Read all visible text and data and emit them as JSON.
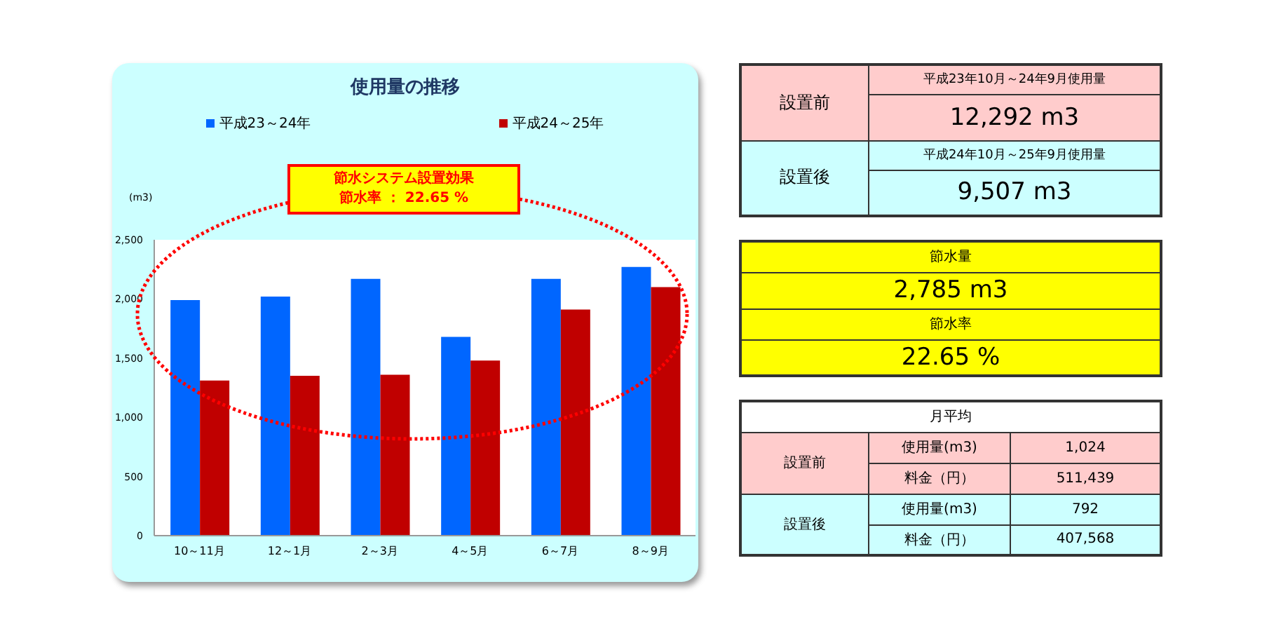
{
  "chart_data": [
    {
      "type": "bar",
      "title": "使用量の推移",
      "ylabel": "(m3)",
      "legend": "top",
      "categories": [
        "10～11月",
        "12～1月",
        "2～3月",
        "4～5月",
        "6～7月",
        "8～9月"
      ],
      "series": [
        {
          "name": "平成23～24年",
          "color": "#0066ff",
          "values": [
            1990,
            2020,
            2170,
            1680,
            2170,
            2270
          ]
        },
        {
          "name": "平成24～25年",
          "color": "#c00000",
          "values": [
            1310,
            1350,
            1360,
            1480,
            1910,
            2100
          ]
        }
      ],
      "ylim": [
        0,
        2500
      ],
      "yticks": [
        0,
        500,
        {
          "value": 1000,
          "label": "1,000"
        },
        {
          "value": 1500,
          "label": "1,500"
        },
        {
          "value": 2000,
          "label": "2,000"
        },
        {
          "value": 2500,
          "label": "2,500"
        }
      ],
      "annotations": [
        "節水システム設置効果",
        "節水率 ： 22.65 %"
      ]
    },
    {
      "type": "other",
      "annotations": [
        "設置前",
        "平成23年10月～24年9月使用量",
        "12,292 m3",
        "設置後",
        "平成24年10月～25年9月使用量",
        "9,507 m3"
      ]
    },
    {
      "type": "other",
      "annotations": [
        "節水量",
        "2,785 m3",
        "節水率",
        "22.65 %"
      ]
    },
    {
      "type": "other",
      "title": "月平均",
      "annotations": [
        "設置前",
        "使用量(m3)",
        "1,024",
        "料金（円）",
        "511,439",
        "設置後",
        "使用量(m3)",
        "792",
        "料金（円）",
        "407,568"
      ]
    }
  ]
}
